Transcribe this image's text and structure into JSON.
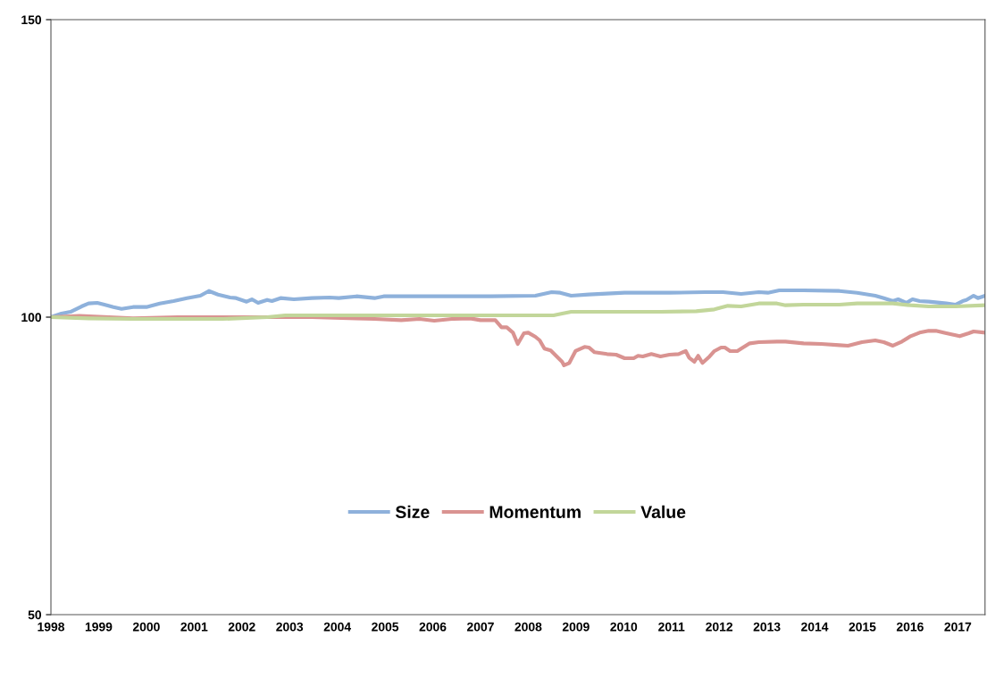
{
  "chart_data": {
    "type": "line",
    "xlim": [
      1998,
      2017.57
    ],
    "xticks": [
      1998,
      1999,
      2000,
      2001,
      2002,
      2003,
      2004,
      2005,
      2006,
      2007,
      2008,
      2009,
      2010,
      2011,
      2012,
      2013,
      2014,
      2015,
      2016,
      2017
    ],
    "ylim": [
      50,
      150
    ],
    "yticks": [
      50,
      100,
      150
    ],
    "grid": false,
    "legend": "bottom",
    "marker": "none",
    "line_style": "solid",
    "series": [
      {
        "name": "Size",
        "color": "#8eb1db",
        "x": [
          1998,
          1998.22,
          1998.41,
          1998.64,
          1998.79,
          1998.97,
          1999.12,
          1999.31,
          1999.48,
          1999.72,
          2000.0,
          2000.28,
          2000.57,
          2000.85,
          2001.13,
          2001.31,
          2001.5,
          2001.75,
          2001.88,
          2002.1,
          2002.21,
          2002.34,
          2002.53,
          2002.63,
          2002.81,
          2003.09,
          2003.47,
          2003.84,
          2004.03,
          2004.4,
          2004.78,
          2004.97,
          2005.34,
          2006.28,
          2007.21,
          2008.15,
          2008.49,
          2008.67,
          2008.9,
          2009.27,
          2010.02,
          2010.96,
          2011.71,
          2012.08,
          2012.46,
          2012.83,
          2013.02,
          2013.26,
          2013.77,
          2014.52,
          2014.89,
          2015.27,
          2015.45,
          2015.64,
          2015.75,
          2015.92,
          2016.05,
          2016.2,
          2016.39,
          2016.76,
          2016.95,
          2017.1,
          2017.18,
          2017.33,
          2017.42,
          2017.57
        ],
        "values": [
          100,
          100.6,
          100.9,
          101.8,
          102.3,
          102.4,
          102.1,
          101.7,
          101.4,
          101.7,
          101.7,
          102.3,
          102.7,
          103.2,
          103.6,
          104.4,
          103.8,
          103.3,
          103.2,
          102.6,
          103,
          102.4,
          102.9,
          102.7,
          103.2,
          103,
          103.2,
          103.3,
          103.2,
          103.5,
          103.2,
          103.5,
          103.5,
          103.5,
          103.5,
          103.6,
          104.2,
          104.1,
          103.6,
          103.8,
          104.1,
          104.1,
          104.2,
          104.2,
          103.9,
          104.2,
          104.1,
          104.5,
          104.5,
          104.4,
          104.1,
          103.6,
          103.2,
          102.7,
          103,
          102.4,
          103,
          102.7,
          102.6,
          102.3,
          102.1,
          102.7,
          102.9,
          103.6,
          103.2,
          103.6
        ]
      },
      {
        "name": "Momentum",
        "color": "#d99391",
        "x": [
          1998,
          1998.6,
          1999.72,
          2000.66,
          2001.6,
          2002.53,
          2003.47,
          2004.4,
          2004.78,
          2005.34,
          2005.72,
          2006.03,
          2006.4,
          2006.78,
          2007.0,
          2007.31,
          2007.44,
          2007.55,
          2007.68,
          2007.78,
          2007.91,
          2008.0,
          2008.15,
          2008.24,
          2008.34,
          2008.47,
          2008.62,
          2008.71,
          2008.75,
          2008.86,
          2008.99,
          2009.18,
          2009.27,
          2009.39,
          2009.65,
          2009.84,
          2010.02,
          2010.21,
          2010.3,
          2010.4,
          2010.58,
          2010.77,
          2010.96,
          2011.15,
          2011.3,
          2011.37,
          2011.48,
          2011.56,
          2011.65,
          2011.8,
          2011.9,
          2012.04,
          2012.12,
          2012.23,
          2012.38,
          2012.46,
          2012.64,
          2012.83,
          2013.21,
          2013.39,
          2013.77,
          2014.14,
          2014.52,
          2014.7,
          2014.99,
          2015.27,
          2015.45,
          2015.64,
          2015.83,
          2016.01,
          2016.2,
          2016.39,
          2016.54,
          2016.76,
          2017.04,
          2017.23,
          2017.33,
          2017.57
        ],
        "values": [
          100,
          100.2,
          99.8,
          100,
          100,
          100,
          100,
          99.8,
          99.7,
          99.5,
          99.7,
          99.4,
          99.7,
          99.8,
          99.5,
          99.5,
          98.3,
          98.3,
          97.4,
          95.5,
          97.3,
          97.4,
          96.7,
          96.1,
          94.7,
          94.4,
          93.2,
          92.5,
          91.9,
          92.3,
          94.3,
          95,
          94.9,
          94.1,
          93.8,
          93.7,
          93.1,
          93.1,
          93.5,
          93.4,
          93.8,
          93.4,
          93.7,
          93.8,
          94.3,
          93.2,
          92.5,
          93.5,
          92.3,
          93.4,
          94.3,
          94.9,
          94.9,
          94.3,
          94.3,
          94.7,
          95.6,
          95.8,
          95.9,
          95.9,
          95.6,
          95.5,
          95.3,
          95.2,
          95.8,
          96.1,
          95.8,
          95.2,
          95.9,
          96.8,
          97.4,
          97.7,
          97.7,
          97.3,
          96.8,
          97.3,
          97.6,
          97.4
        ]
      },
      {
        "name": "Value",
        "color": "#c2d69a",
        "x": [
          1998,
          1998.79,
          1999.72,
          2000.66,
          2001.6,
          2002.53,
          2002.91,
          2003.47,
          2004.4,
          2006.28,
          2007.78,
          2008.53,
          2008.71,
          2008.9,
          2009.65,
          2010.02,
          2010.77,
          2011.52,
          2011.9,
          2012.18,
          2012.46,
          2012.83,
          2013.21,
          2013.39,
          2013.77,
          2014.52,
          2014.89,
          2015.64,
          2016.01,
          2016.39,
          2016.95,
          2017.57
        ],
        "values": [
          100,
          99.8,
          99.7,
          99.7,
          99.7,
          100,
          100.3,
          100.3,
          100.3,
          100.3,
          100.3,
          100.3,
          100.6,
          100.9,
          100.9,
          100.9,
          100.9,
          101,
          101.3,
          101.9,
          101.8,
          102.3,
          102.3,
          102,
          102.1,
          102.1,
          102.3,
          102.3,
          102,
          101.8,
          101.8,
          102
        ]
      }
    ]
  }
}
